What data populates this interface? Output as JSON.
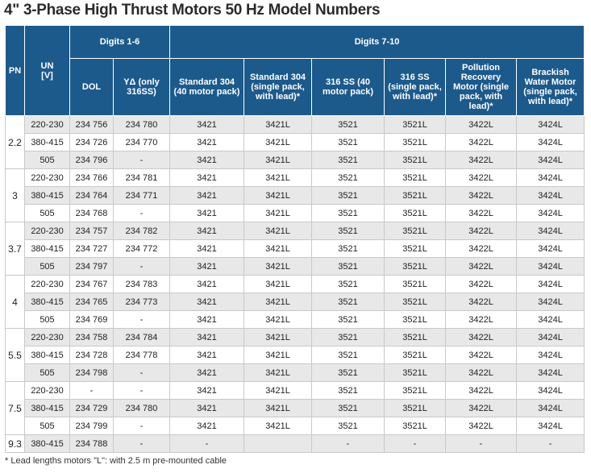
{
  "title": "4\" 3-Phase High Thrust Motors 50 Hz Model Numbers",
  "header": {
    "pn": "PN",
    "un": "UN",
    "un_unit": "[V]",
    "digits_1_6": "Digits 1-6",
    "digits_7_10": "Digits 7-10",
    "columns": [
      "DOL",
      "YΔ (only 316SS)",
      "Standard 304 (40 motor pack)",
      "Standard 304 (single pack, with lead)*",
      "316 SS (40 motor pack)",
      "316 SS (single pack, with lead)*",
      "Pollution Recovery Motor (single pack, with lead)*",
      "Brackish Water Motor (single pack, with lead)*"
    ]
  },
  "groups": [
    {
      "pn": "2.2",
      "rows": [
        [
          "220-230",
          "234 756",
          "234 780",
          "3421",
          "3421L",
          "3521",
          "3521L",
          "3422L",
          "3424L"
        ],
        [
          "380-415",
          "234 726",
          "234 770",
          "3421",
          "3421L",
          "3521",
          "3521L",
          "3422L",
          "3424L"
        ],
        [
          "505",
          "234 796",
          "-",
          "3421",
          "3421L",
          "3521",
          "3521L",
          "3422L",
          "3424L"
        ]
      ]
    },
    {
      "pn": "3",
      "rows": [
        [
          "220-230",
          "234 766",
          "234 781",
          "3421",
          "3421L",
          "3521",
          "3521L",
          "3422L",
          "3424L"
        ],
        [
          "380-415",
          "234 764",
          "234 771",
          "3421",
          "3421L",
          "3521",
          "3521L",
          "3422L",
          "3424L"
        ],
        [
          "505",
          "234 768",
          "-",
          "3421",
          "3421L",
          "3521",
          "3521L",
          "3422L",
          "3424L"
        ]
      ]
    },
    {
      "pn": "3.7",
      "rows": [
        [
          "220-230",
          "234 757",
          "234 782",
          "3421",
          "3421L",
          "3521",
          "3521L",
          "3422L",
          "3424L"
        ],
        [
          "380-415",
          "234 727",
          "234 772",
          "3421",
          "3421L",
          "3521",
          "3521L",
          "3422L",
          "3424L"
        ],
        [
          "505",
          "234 797",
          "-",
          "3421",
          "3421L",
          "3521",
          "3521L",
          "3422L",
          "3424L"
        ]
      ]
    },
    {
      "pn": "4",
      "rows": [
        [
          "220-230",
          "234 767",
          "234 783",
          "3421",
          "3421L",
          "3521",
          "3521L",
          "3422L",
          "3424L"
        ],
        [
          "380-415",
          "234 765",
          "234 773",
          "3421",
          "3421L",
          "3521",
          "3521L",
          "3422L",
          "3424L"
        ],
        [
          "505",
          "234 769",
          "-",
          "3421",
          "3421L",
          "3521",
          "3521L",
          "3422L",
          "3424L"
        ]
      ]
    },
    {
      "pn": "5.5",
      "rows": [
        [
          "220-230",
          "234 758",
          "234 784",
          "3421",
          "3421L",
          "3521",
          "3521L",
          "3422L",
          "3424L"
        ],
        [
          "380-415",
          "234 728",
          "234 778",
          "3421",
          "3421L",
          "3521",
          "3521L",
          "3422L",
          "3424L"
        ],
        [
          "505",
          "234 798",
          "-",
          "3421",
          "3421L",
          "3521",
          "3521L",
          "3422L",
          "3424L"
        ]
      ]
    },
    {
      "pn": "7.5",
      "rows": [
        [
          "220-230",
          "-",
          "-",
          "3421",
          "3421L",
          "3521",
          "3521L",
          "3422L",
          "3424L"
        ],
        [
          "380-415",
          "234 729",
          "234 780",
          "3421",
          "3421L",
          "3521",
          "3521L",
          "3422L",
          "3424L"
        ],
        [
          "505",
          "234 799",
          "-",
          "3421",
          "3421L",
          "3521",
          "3521L",
          "3422L",
          "3424L"
        ]
      ]
    },
    {
      "pn": "9.3",
      "rows": [
        [
          "380-415",
          "234 788",
          "-",
          "-",
          "",
          "-",
          "-",
          "-",
          "-"
        ]
      ]
    }
  ],
  "footnote": "* Lead lengths motors \"L\": with 2.5 m pre-mounted cable"
}
